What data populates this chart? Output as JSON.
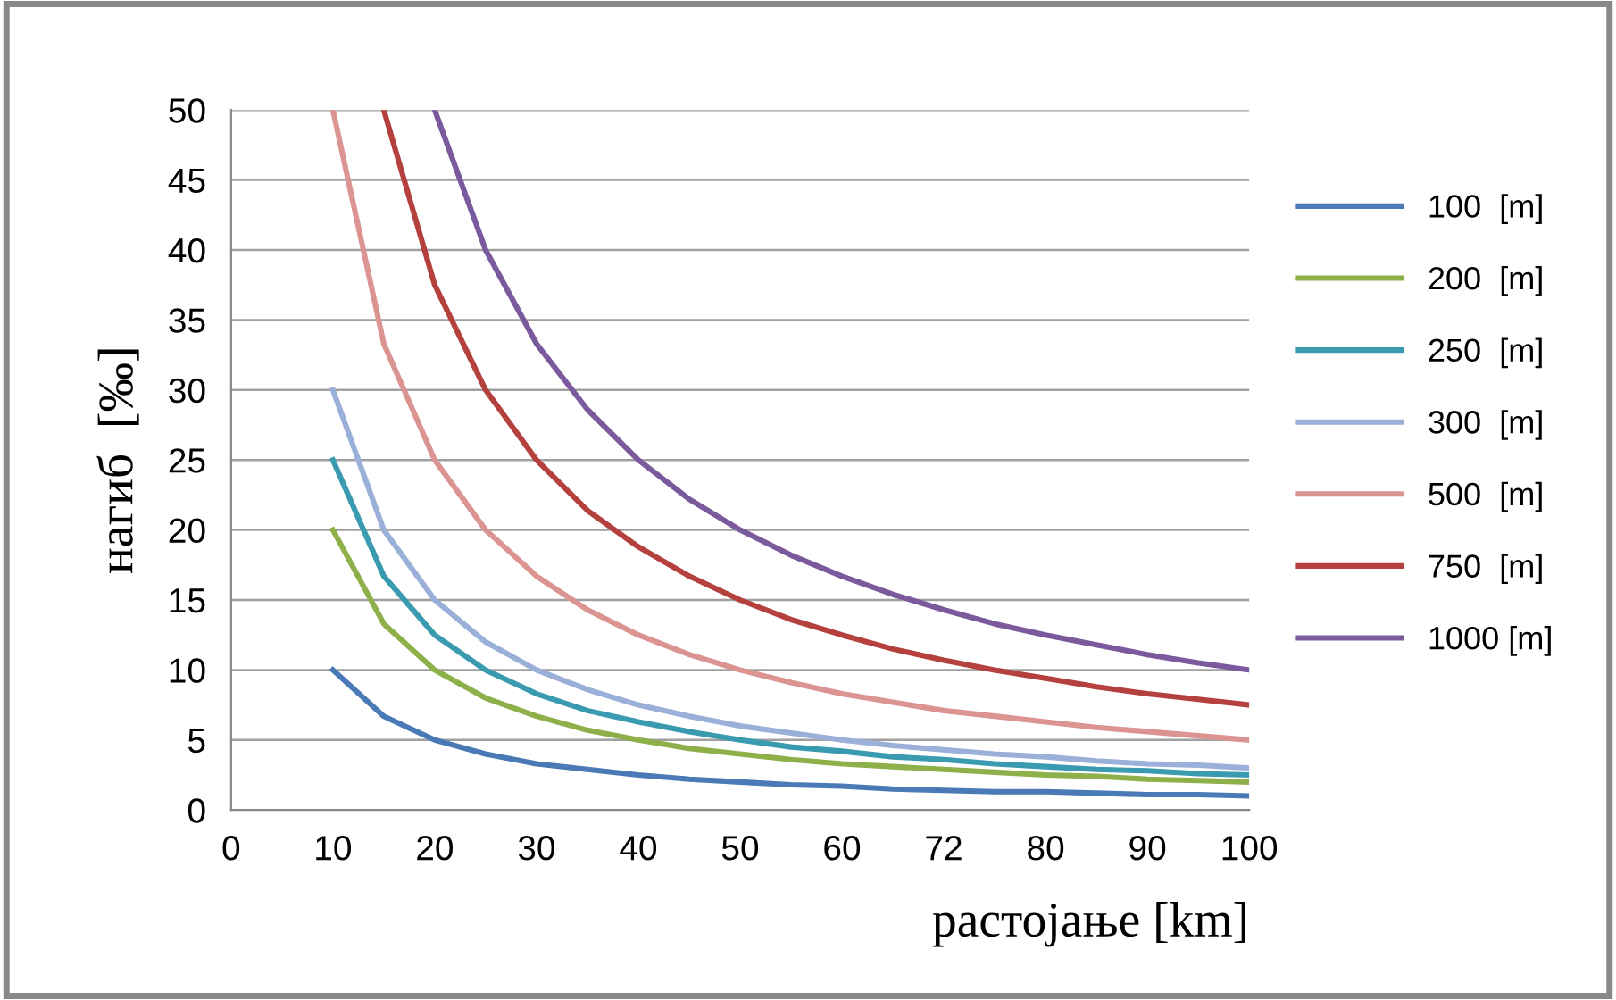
{
  "chart_data": {
    "type": "line",
    "xlabel": "растојање [km]",
    "ylabel": "нагиб  [‰]",
    "categories": [
      "0",
      null,
      "10",
      null,
      "20",
      null,
      "30",
      null,
      "40",
      null,
      "50",
      null,
      "60",
      null,
      "72",
      null,
      "80",
      null,
      "90",
      null,
      "100"
    ],
    "ylim": [
      0,
      50
    ],
    "yticks": [
      0,
      5,
      10,
      15,
      20,
      25,
      30,
      35,
      40,
      45,
      50
    ],
    "grid": "y",
    "legend": "right",
    "marker": "none",
    "line_style": "solid",
    "series": [
      {
        "name": "100  [m]",
        "color": "#4a7ab5",
        "values": [
          null,
          null,
          10,
          6.7,
          5,
          4,
          3.3,
          2.9,
          2.5,
          2.2,
          2,
          1.8,
          1.7,
          1.5,
          1.4,
          1.3,
          1.3,
          1.2,
          1.1,
          1.1,
          1
        ]
      },
      {
        "name": "200  [m]",
        "color": "#8db04a",
        "values": [
          null,
          null,
          20,
          13.3,
          10,
          8,
          6.7,
          5.7,
          5,
          4.4,
          4,
          3.6,
          3.3,
          3.1,
          2.9,
          2.7,
          2.5,
          2.4,
          2.2,
          2.1,
          2
        ]
      },
      {
        "name": "250  [m]",
        "color": "#3a9ab0",
        "values": [
          null,
          null,
          25,
          16.7,
          12.5,
          10,
          8.3,
          7.1,
          6.3,
          5.6,
          5,
          4.5,
          4.2,
          3.8,
          3.6,
          3.3,
          3.1,
          2.9,
          2.8,
          2.6,
          2.5
        ]
      },
      {
        "name": "300  [m]",
        "color": "#9bb0d8",
        "values": [
          null,
          null,
          30,
          20,
          15,
          12,
          10,
          8.6,
          7.5,
          6.7,
          6,
          5.5,
          5,
          4.6,
          4.3,
          4,
          3.8,
          3.5,
          3.3,
          3.2,
          3
        ]
      },
      {
        "name": "500  [m]",
        "color": "#dc9493",
        "values": [
          null,
          null,
          50,
          33.3,
          25,
          20,
          16.7,
          14.3,
          12.5,
          11.1,
          10,
          9.1,
          8.3,
          7.7,
          7.1,
          6.7,
          6.3,
          5.9,
          5.6,
          5.3,
          5
        ]
      },
      {
        "name": "750  [m]",
        "color": "#b5413e",
        "values": [
          null,
          null,
          null,
          50,
          37.5,
          30,
          25,
          21.4,
          18.8,
          16.7,
          15,
          13.6,
          12.5,
          11.5,
          10.7,
          10,
          9.4,
          8.8,
          8.3,
          7.9,
          7.5
        ]
      },
      {
        "name": "1000 [m]",
        "color": "#7a5a9c",
        "values": [
          null,
          null,
          null,
          null,
          50,
          40,
          33.3,
          28.6,
          25,
          22.2,
          20,
          18.2,
          16.7,
          15.4,
          14.3,
          13.3,
          12.5,
          11.8,
          11.1,
          10.5,
          10
        ]
      }
    ]
  }
}
